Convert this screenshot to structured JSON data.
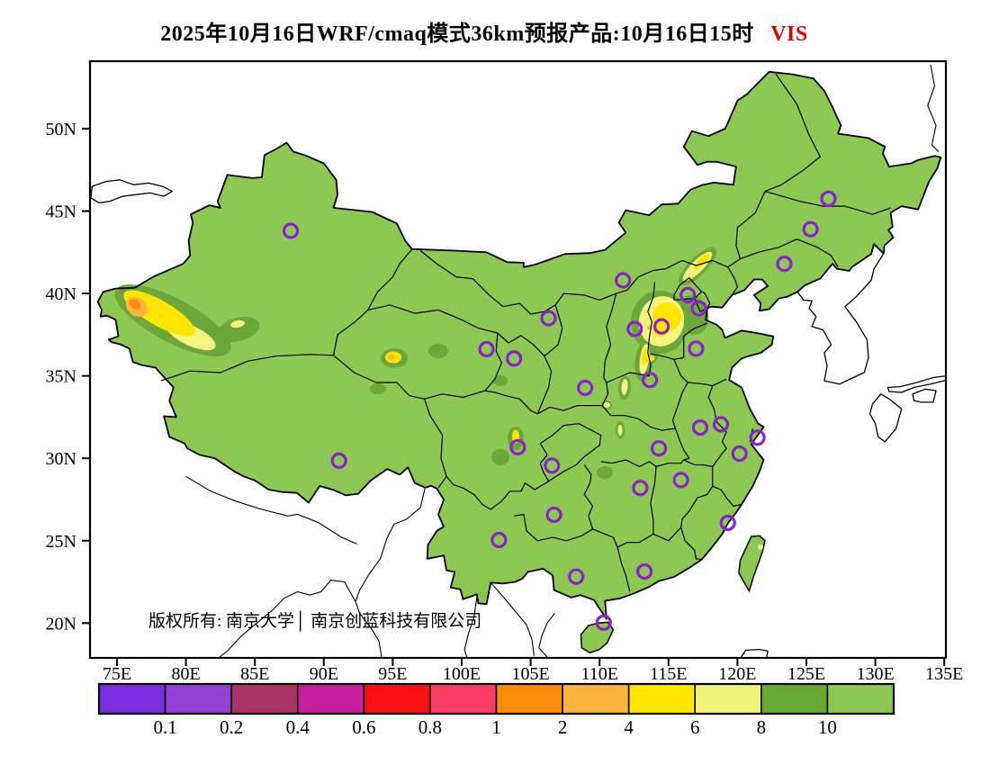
{
  "title": {
    "main": "2025年10月16日WRF/cmaq模式36km预报产品:10月16日15时",
    "variable": "VIS",
    "variable_color": "#e80000"
  },
  "copyright": "版权所有: 南京大学│ 南京创蓝科技有限公司",
  "axes": {
    "lat_ticks": [
      {
        "label": "50N",
        "value": 50
      },
      {
        "label": "45N",
        "value": 45
      },
      {
        "label": "40N",
        "value": 40
      },
      {
        "label": "35N",
        "value": 35
      },
      {
        "label": "30N",
        "value": 30
      },
      {
        "label": "25N",
        "value": 25
      },
      {
        "label": "20N",
        "value": 20
      }
    ],
    "lon_ticks": [
      {
        "label": "75E",
        "value": 75
      },
      {
        "label": "80E",
        "value": 80
      },
      {
        "label": "85E",
        "value": 85
      },
      {
        "label": "90E",
        "value": 90
      },
      {
        "label": "95E",
        "value": 95
      },
      {
        "label": "100E",
        "value": 100
      },
      {
        "label": "105E",
        "value": 105
      },
      {
        "label": "110E",
        "value": 110
      },
      {
        "label": "115E",
        "value": 115
      },
      {
        "label": "120E",
        "value": 120
      },
      {
        "label": "125E",
        "value": 125
      },
      {
        "label": "130E",
        "value": 130
      },
      {
        "label": "135E",
        "value": 135
      }
    ]
  },
  "colorbar": {
    "tick_values": [
      "0.1",
      "0.2",
      "0.4",
      "0.6",
      "0.8",
      "1",
      "2",
      "4",
      "6",
      "8",
      "10"
    ],
    "segment_colors": [
      "#7b2ede",
      "#9440d2",
      "#a83464",
      "#c620a0",
      "#f80f0f",
      "#fa3c64",
      "#fc8c0c",
      "#fcb43e",
      "#ffe400",
      "#eef478",
      "#66a832",
      "#8dc852"
    ]
  },
  "map": {
    "type": "filled-contour-map",
    "variable": "visibility",
    "sea_color": "#ffffff",
    "land_fill_gt10": "#8dc852",
    "band_8_10": "#6da63a",
    "band_6_8": "#f2f47e",
    "band_4_6": "#ffe400",
    "band_2_4": "#fcb43e",
    "band_1_2": "#fc8c0c",
    "boundary_color": "#000000",
    "marker_color": "#8b20ce",
    "markers": [
      {
        "name": "urumqi",
        "lon": 87.6,
        "lat": 43.8
      },
      {
        "name": "harbin",
        "lon": 126.6,
        "lat": 45.75
      },
      {
        "name": "changchun",
        "lon": 125.3,
        "lat": 43.9
      },
      {
        "name": "shenyang",
        "lon": 123.4,
        "lat": 41.8
      },
      {
        "name": "hohhot",
        "lon": 111.7,
        "lat": 40.8
      },
      {
        "name": "beijing",
        "lon": 116.4,
        "lat": 39.9
      },
      {
        "name": "tianjin",
        "lon": 117.2,
        "lat": 39.1
      },
      {
        "name": "shijiazhuang",
        "lon": 114.5,
        "lat": 38.0
      },
      {
        "name": "taiyuan",
        "lon": 112.55,
        "lat": 37.85
      },
      {
        "name": "jinan",
        "lon": 117.0,
        "lat": 36.65
      },
      {
        "name": "yinchuan",
        "lon": 106.3,
        "lat": 38.5
      },
      {
        "name": "xining",
        "lon": 101.8,
        "lat": 36.62
      },
      {
        "name": "lanzhou",
        "lon": 103.8,
        "lat": 36.05
      },
      {
        "name": "xian",
        "lon": 108.95,
        "lat": 34.27
      },
      {
        "name": "zhengzhou",
        "lon": 113.65,
        "lat": 34.75
      },
      {
        "name": "lhasa",
        "lon": 91.1,
        "lat": 29.85
      },
      {
        "name": "chengdu",
        "lon": 104.07,
        "lat": 30.67
      },
      {
        "name": "chongqing",
        "lon": 106.55,
        "lat": 29.56
      },
      {
        "name": "guiyang",
        "lon": 106.7,
        "lat": 26.57
      },
      {
        "name": "kunming",
        "lon": 102.7,
        "lat": 25.04
      },
      {
        "name": "nanning",
        "lon": 108.3,
        "lat": 22.82
      },
      {
        "name": "haikou",
        "lon": 110.3,
        "lat": 20.03
      },
      {
        "name": "guangzhou",
        "lon": 113.26,
        "lat": 23.13
      },
      {
        "name": "changsha",
        "lon": 112.95,
        "lat": 28.2
      },
      {
        "name": "wuhan",
        "lon": 114.3,
        "lat": 30.6
      },
      {
        "name": "hefei",
        "lon": 117.3,
        "lat": 31.86
      },
      {
        "name": "nanjing",
        "lon": 118.8,
        "lat": 32.06
      },
      {
        "name": "shanghai",
        "lon": 121.45,
        "lat": 31.25
      },
      {
        "name": "hangzhou",
        "lon": 120.15,
        "lat": 30.28
      },
      {
        "name": "nanchang",
        "lon": 115.9,
        "lat": 28.68
      },
      {
        "name": "fuzhou",
        "lon": 119.3,
        "lat": 26.08
      }
    ],
    "low_visibility_regions": [
      {
        "area": "tarim-basin-xinjiang",
        "min_band": "1-2 km"
      },
      {
        "area": "qaidam-basin-qinghai",
        "min_band": "2-4 km"
      },
      {
        "area": "beijing-hebei-plain",
        "min_band": "2-4 km"
      },
      {
        "area": "chengde-strip-ne-hebei",
        "min_band": "4-6 km"
      },
      {
        "area": "shanxi-henan-valleys",
        "min_band": "4-6 km"
      },
      {
        "area": "sichuan-basin-east",
        "min_band": "4-6 km"
      },
      {
        "area": "north-taiwan-spot",
        "min_band": "6-8 km"
      }
    ]
  }
}
